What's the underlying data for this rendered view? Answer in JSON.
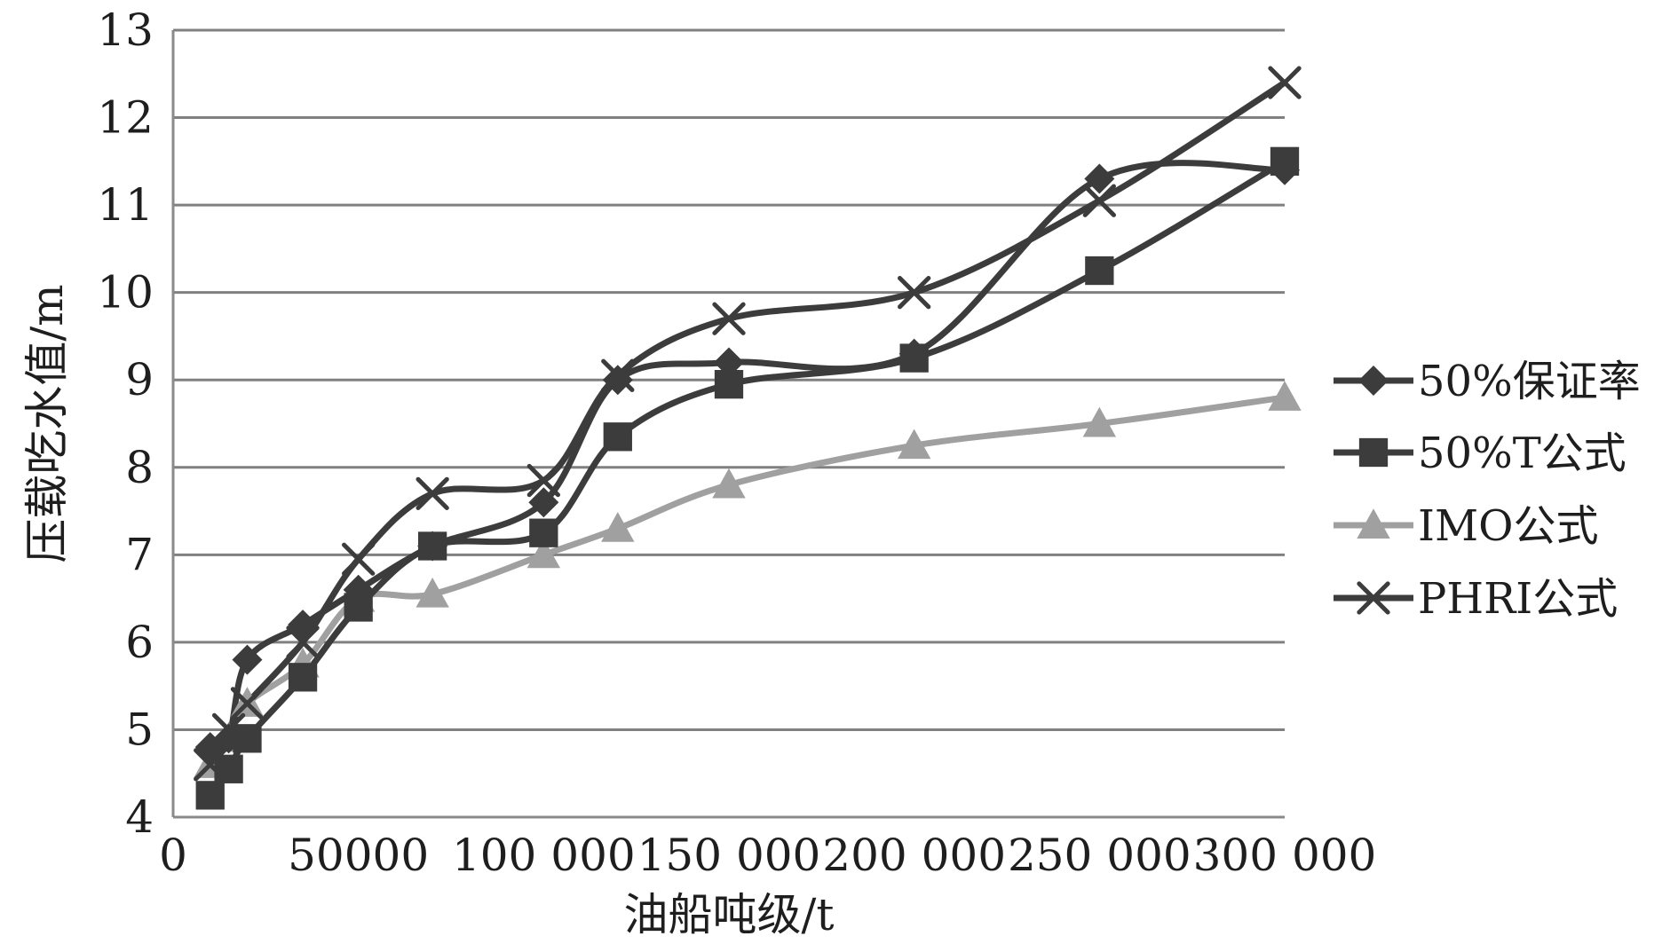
{
  "chart_data": {
    "type": "line",
    "xlabel": "油船吨级/t",
    "ylabel": "压载吃水值/m",
    "xlim": [
      0,
      300000
    ],
    "ylim": [
      4,
      13
    ],
    "x_ticks": [
      0,
      50000,
      100000,
      150000,
      200000,
      250000,
      300000
    ],
    "x_tick_labels": [
      "0",
      "50000",
      "100 000",
      "150 000",
      "200 000",
      "250 000",
      "300 000"
    ],
    "y_ticks": [
      4,
      5,
      6,
      7,
      8,
      9,
      10,
      11,
      12,
      13
    ],
    "y_tick_labels": [
      "4",
      "5",
      "6",
      "7",
      "8",
      "9",
      "10",
      "11",
      "12",
      "13"
    ],
    "grid": "horizontal",
    "legend_position": "right",
    "series": [
      {
        "name": "50%保证率",
        "marker": "diamond",
        "color": "#3c3c3c",
        "x": [
          10000,
          15000,
          20000,
          35000,
          50000,
          70000,
          100000,
          120000,
          150000,
          200000,
          250000,
          300000
        ],
        "y": [
          4.8,
          4.9,
          5.8,
          6.2,
          6.6,
          7.1,
          7.6,
          9.0,
          9.2,
          9.3,
          11.3,
          11.4
        ]
      },
      {
        "name": "50%T公式",
        "marker": "square",
        "color": "#3c3c3c",
        "x": [
          10000,
          15000,
          20000,
          35000,
          50000,
          70000,
          100000,
          120000,
          150000,
          200000,
          250000,
          300000
        ],
        "y": [
          4.25,
          4.55,
          4.9,
          5.6,
          6.4,
          7.1,
          7.25,
          8.35,
          8.95,
          9.25,
          10.25,
          11.5
        ]
      },
      {
        "name": "IMO公式",
        "marker": "triangle",
        "color": "#a0a0a0",
        "x": [
          10000,
          15000,
          20000,
          35000,
          50000,
          70000,
          100000,
          120000,
          150000,
          200000,
          250000,
          300000
        ],
        "y": [
          4.6,
          4.9,
          5.3,
          5.75,
          6.5,
          6.55,
          7.0,
          7.3,
          7.8,
          8.25,
          8.5,
          8.8
        ]
      },
      {
        "name": "PHRI公式",
        "marker": "x",
        "color": "#3c3c3c",
        "x": [
          10000,
          15000,
          20000,
          35000,
          50000,
          70000,
          100000,
          120000,
          150000,
          200000,
          250000,
          300000
        ],
        "y": [
          4.6,
          5.0,
          5.3,
          6.0,
          6.95,
          7.7,
          7.85,
          9.05,
          9.7,
          10.0,
          11.05,
          12.4
        ]
      }
    ]
  }
}
